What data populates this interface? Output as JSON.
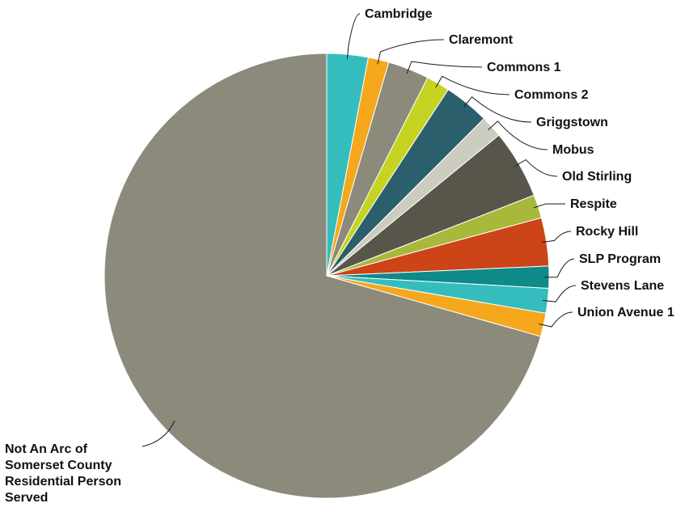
{
  "chart_data": {
    "type": "pie",
    "title": "",
    "slices": [
      {
        "label": "Cambridge",
        "value": 3.0,
        "color": "#35bdbd"
      },
      {
        "label": "Claremont",
        "value": 1.5,
        "color": "#f5a81c"
      },
      {
        "label": "Commons 1",
        "value": 3.0,
        "color": "#8b8a7b"
      },
      {
        "label": "Commons 2",
        "value": 1.7,
        "color": "#c6d323"
      },
      {
        "label": "Griggstown",
        "value": 3.3,
        "color": "#2b5f6b"
      },
      {
        "label": "Mobus",
        "value": 1.6,
        "color": "#cdccc0"
      },
      {
        "label": "Old Stirling",
        "value": 5.0,
        "color": "#58564a"
      },
      {
        "label": "Respite",
        "value": 1.7,
        "color": "#a8b83a"
      },
      {
        "label": "Rocky Hill",
        "value": 3.5,
        "color": "#cc4418"
      },
      {
        "label": "SLP Program",
        "value": 1.6,
        "color": "#0e8a8a"
      },
      {
        "label": "Stevens Lane",
        "value": 1.8,
        "color": "#35bdbd"
      },
      {
        "label": "Union Avenue 1",
        "value": 1.7,
        "color": "#f5a81c"
      },
      {
        "label": "Not An Arc of Somerset County Residential Person Served",
        "value": 70.6,
        "color": "#8b8a7b"
      }
    ]
  }
}
